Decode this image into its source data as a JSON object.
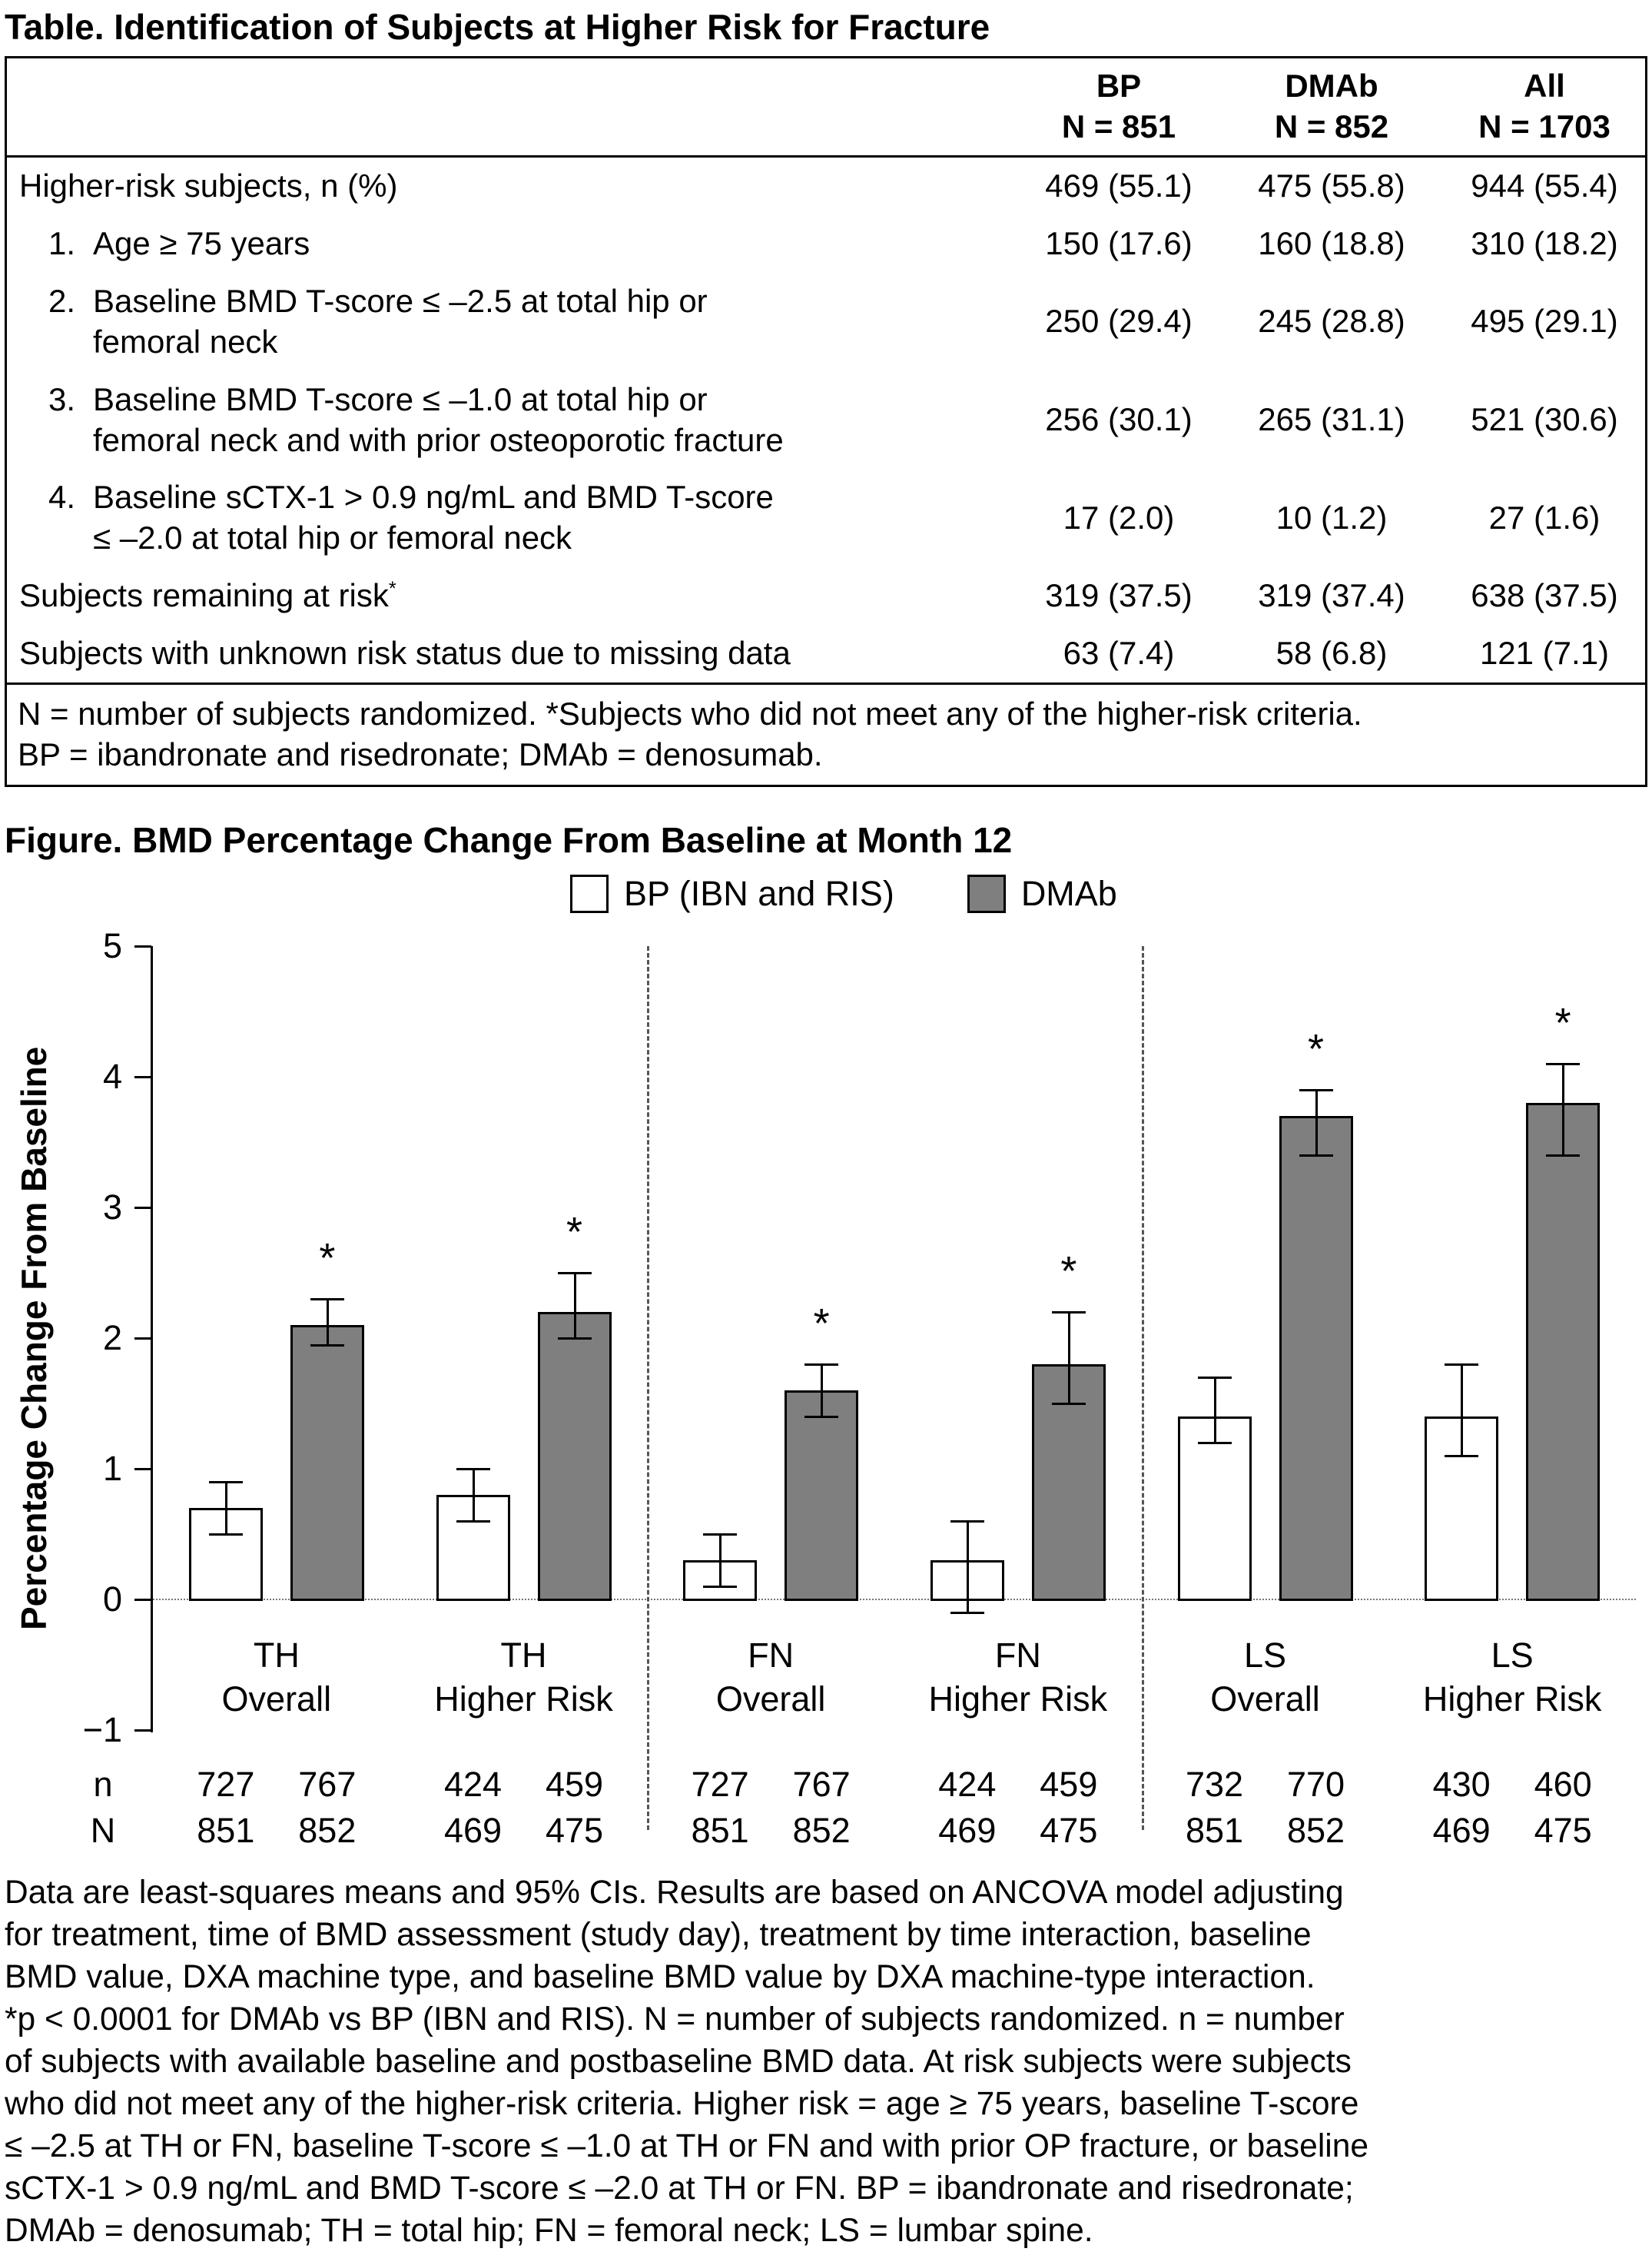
{
  "table": {
    "title": "Table. Identification of Subjects at Higher Risk for Fracture",
    "columns": [
      {
        "name": "BP",
        "n": "N = 851"
      },
      {
        "name": "DMAb",
        "n": "N = 852"
      },
      {
        "name": "All",
        "n": "N = 1703"
      }
    ],
    "rows": [
      {
        "num": "",
        "label": "Higher-risk subjects, n (%)",
        "sup": "",
        "values": [
          "469 (55.1)",
          "475 (55.8)",
          "944 (55.4)"
        ]
      },
      {
        "num": "1.",
        "label": "Age ≥ 75 years",
        "sup": "",
        "values": [
          "150 (17.6)",
          "160 (18.8)",
          "310 (18.2)"
        ]
      },
      {
        "num": "2.",
        "label": "Baseline BMD T-score ≤ –2.5 at total hip or\nfemoral neck",
        "sup": "",
        "values": [
          "250 (29.4)",
          "245 (28.8)",
          "495 (29.1)"
        ]
      },
      {
        "num": "3.",
        "label": "Baseline BMD T-score ≤ –1.0 at total hip or\nfemoral neck and with prior osteoporotic fracture",
        "sup": "",
        "values": [
          "256 (30.1)",
          "265 (31.1)",
          "521 (30.6)"
        ]
      },
      {
        "num": "4.",
        "label": "Baseline sCTX-1 > 0.9 ng/mL and BMD T-score\n≤ –2.0 at total hip or femoral neck",
        "sup": "",
        "values": [
          "17 (2.0)",
          "10 (1.2)",
          "27 (1.6)"
        ]
      },
      {
        "num": "",
        "label": "Subjects remaining at risk",
        "sup": "*",
        "values": [
          "319 (37.5)",
          "319 (37.4)",
          "638 (37.5)"
        ]
      },
      {
        "num": "",
        "label": "Subjects with unknown risk status due to missing data",
        "sup": "",
        "values": [
          "63 (7.4)",
          "58 (6.8)",
          "121 (7.1)"
        ]
      }
    ],
    "footnote": "N = number of subjects randomized. *Subjects who did not meet any of the higher-risk criteria.\nBP = ibandronate and risedronate; DMAb = denosumab."
  },
  "figure": {
    "title": "Figure. BMD Percentage Change From Baseline at Month 12",
    "footnote_lines": [
      "Data are least-squares means and 95% CIs. Results are based on ANCOVA model adjusting",
      "for treatment, time of BMD assessment (study day), treatment by time interaction, baseline",
      "BMD value, DXA machine type, and baseline BMD value by DXA machine-type interaction.",
      "*p < 0.0001 for DMAb vs BP (IBN and RIS). N = number of subjects randomized. n = number",
      "of subjects with available baseline and postbaseline BMD data. At risk subjects were subjects",
      "who did not meet any of the higher-risk criteria. Higher risk = age ≥ 75 years, baseline T-score",
      "≤ –2.5 at TH or FN, baseline T-score ≤ –1.0 at TH or FN and with prior OP fracture, or baseline",
      "sCTX-1 > 0.9 ng/mL and BMD T-score ≤ –2.0 at TH or FN. BP = ibandronate and risedronate;",
      "DMAb = denosumab; TH = total hip; FN = femoral neck; LS = lumbar spine."
    ]
  },
  "chart_data": {
    "type": "bar",
    "title": "Figure. BMD Percentage Change From Baseline at Month 12",
    "ylabel": "Percentage Change From Baseline",
    "ylim": [
      -1,
      5
    ],
    "yticks": [
      {
        "v": 5,
        "label": "5"
      },
      {
        "v": 4,
        "label": "4"
      },
      {
        "v": 3,
        "label": "3"
      },
      {
        "v": 2,
        "label": "2"
      },
      {
        "v": 1,
        "label": "1"
      },
      {
        "v": 0,
        "label": "0"
      },
      {
        "v": -1,
        "label": "−1"
      }
    ],
    "categories": [
      {
        "line1": "TH",
        "line2": "Overall"
      },
      {
        "line1": "TH",
        "line2": "Higher Risk"
      },
      {
        "line1": "FN",
        "line2": "Overall"
      },
      {
        "line1": "FN",
        "line2": "Higher Risk"
      },
      {
        "line1": "LS",
        "line2": "Overall"
      },
      {
        "line1": "LS",
        "line2": "Higher Risk"
      }
    ],
    "series": [
      {
        "name": "BP (IBN and RIS)",
        "fill": "#ffffff",
        "values": [
          0.7,
          0.8,
          0.3,
          0.3,
          1.4,
          1.4
        ],
        "ci_low": [
          0.5,
          0.6,
          0.1,
          -0.1,
          1.2,
          1.1
        ],
        "ci_high": [
          0.9,
          1.0,
          0.5,
          0.6,
          1.7,
          1.8
        ],
        "significant": [
          false,
          false,
          false,
          false,
          false,
          false
        ]
      },
      {
        "name": "DMAb",
        "fill": "#7f7f7f",
        "values": [
          2.1,
          2.2,
          1.6,
          1.8,
          3.7,
          3.8
        ],
        "ci_low": [
          1.95,
          2.0,
          1.4,
          1.5,
          3.4,
          3.4
        ],
        "ci_high": [
          2.3,
          2.5,
          1.8,
          2.2,
          3.9,
          4.1
        ],
        "significant": [
          true,
          true,
          true,
          true,
          true,
          true
        ]
      }
    ],
    "significance_marker": "*",
    "rows_below": [
      {
        "label": "n",
        "values": [
          [
            "727",
            "767"
          ],
          [
            "424",
            "459"
          ],
          [
            "727",
            "767"
          ],
          [
            "424",
            "459"
          ],
          [
            "732",
            "770"
          ],
          [
            "430",
            "460"
          ]
        ]
      },
      {
        "label": "N",
        "values": [
          [
            "851",
            "852"
          ],
          [
            "469",
            "475"
          ],
          [
            "851",
            "852"
          ],
          [
            "469",
            "475"
          ],
          [
            "851",
            "852"
          ],
          [
            "469",
            "475"
          ]
        ]
      }
    ],
    "group_separators_at": [
      2,
      4
    ],
    "grid": false,
    "legend_position": "top"
  }
}
